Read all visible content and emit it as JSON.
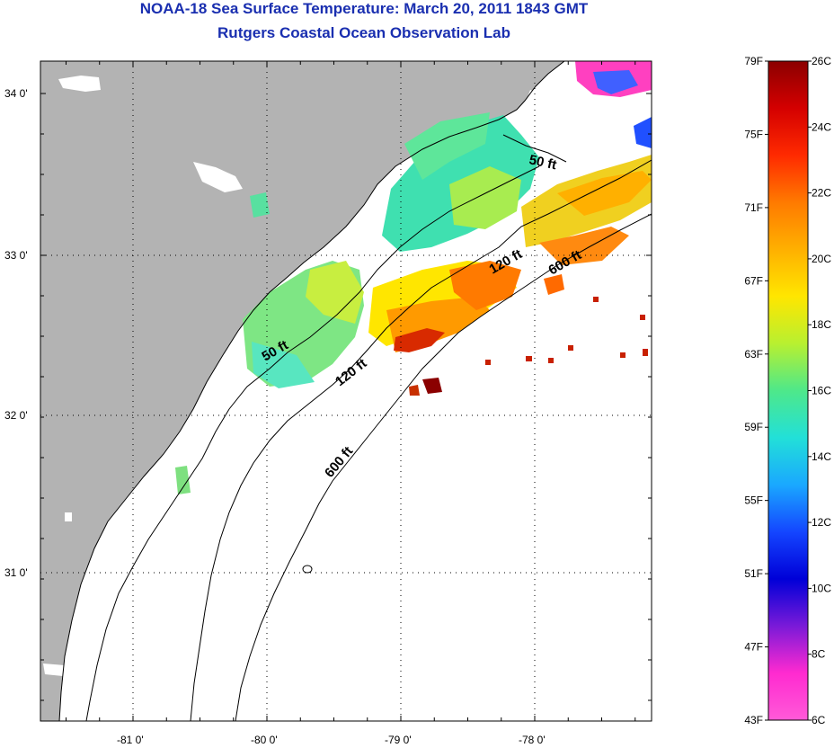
{
  "header": {
    "title": "NOAA-18 Sea Surface Temperature:  March 20, 2011 1843 GMT",
    "subtitle": "Rutgers Coastal Ocean Observation Lab"
  },
  "map": {
    "lat_ticks": [
      {
        "value": 34,
        "label": "34 0'"
      },
      {
        "value": 33,
        "label": "33 0'"
      },
      {
        "value": 32,
        "label": "32 0'"
      },
      {
        "value": 31,
        "label": "31 0'"
      }
    ],
    "lon_ticks": [
      {
        "value": -81,
        "label": "-81 0'"
      },
      {
        "value": -80,
        "label": "-80 0'"
      },
      {
        "value": -79,
        "label": "-79 0'"
      },
      {
        "value": -78,
        "label": "-78 0'"
      }
    ],
    "contour_labels": [
      "50 ft",
      "50 ft",
      "120 ft",
      "120 ft",
      "600 ft",
      "600 ft"
    ],
    "colors": {
      "land": "#b3b3b3",
      "ocean_no_data": "#ffffff",
      "coastline": "#000000"
    }
  },
  "colorbar": {
    "fahrenheit_labels": [
      "79F",
      "75F",
      "71F",
      "67F",
      "63F",
      "59F",
      "55F",
      "51F",
      "47F",
      "43F"
    ],
    "celsius_labels": [
      "26C",
      "24C",
      "22C",
      "20C",
      "18C",
      "16C",
      "14C",
      "12C",
      "10C",
      "8C",
      "6C"
    ],
    "gradient_stops": [
      "#8b0000",
      "#d40000",
      "#ff2a00",
      "#ff7a00",
      "#ffb000",
      "#ffe600",
      "#b8f030",
      "#4ee88a",
      "#22e0d8",
      "#1aa8ff",
      "#1446ff",
      "#0000d8",
      "#7a1ad8",
      "#ff2ad0",
      "#ff5ad8"
    ]
  }
}
